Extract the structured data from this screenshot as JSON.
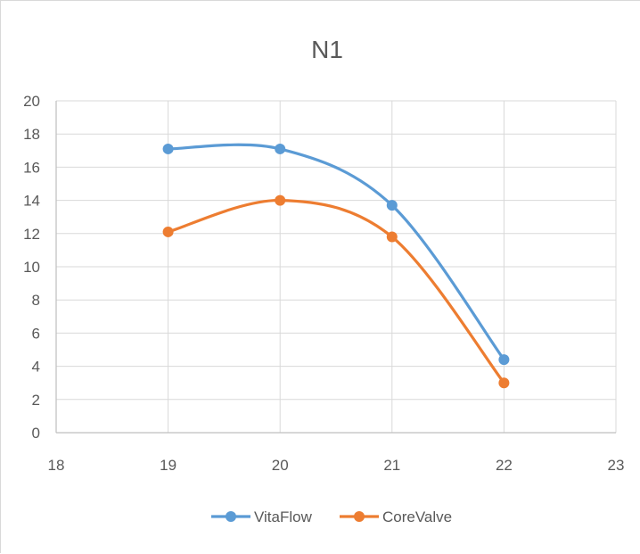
{
  "chart_data": {
    "type": "line",
    "title": "N1",
    "xlabel": "",
    "ylabel": "",
    "x": [
      19,
      20,
      21,
      22
    ],
    "series": [
      {
        "name": "VitaFlow",
        "color": "#5B9BD5",
        "values": [
          17.1,
          17.1,
          13.7,
          4.4
        ]
      },
      {
        "name": "CoreValve",
        "color": "#ED7D31",
        "values": [
          12.1,
          14.0,
          11.8,
          3.0
        ]
      }
    ],
    "xlim": [
      18,
      23
    ],
    "ylim": [
      0,
      20
    ],
    "xticks": [
      18,
      19,
      20,
      21,
      22,
      23
    ],
    "yticks": [
      0,
      2,
      4,
      6,
      8,
      10,
      12,
      14,
      16,
      18,
      20
    ],
    "smooth": true,
    "grid": true,
    "legend_position": "bottom"
  }
}
